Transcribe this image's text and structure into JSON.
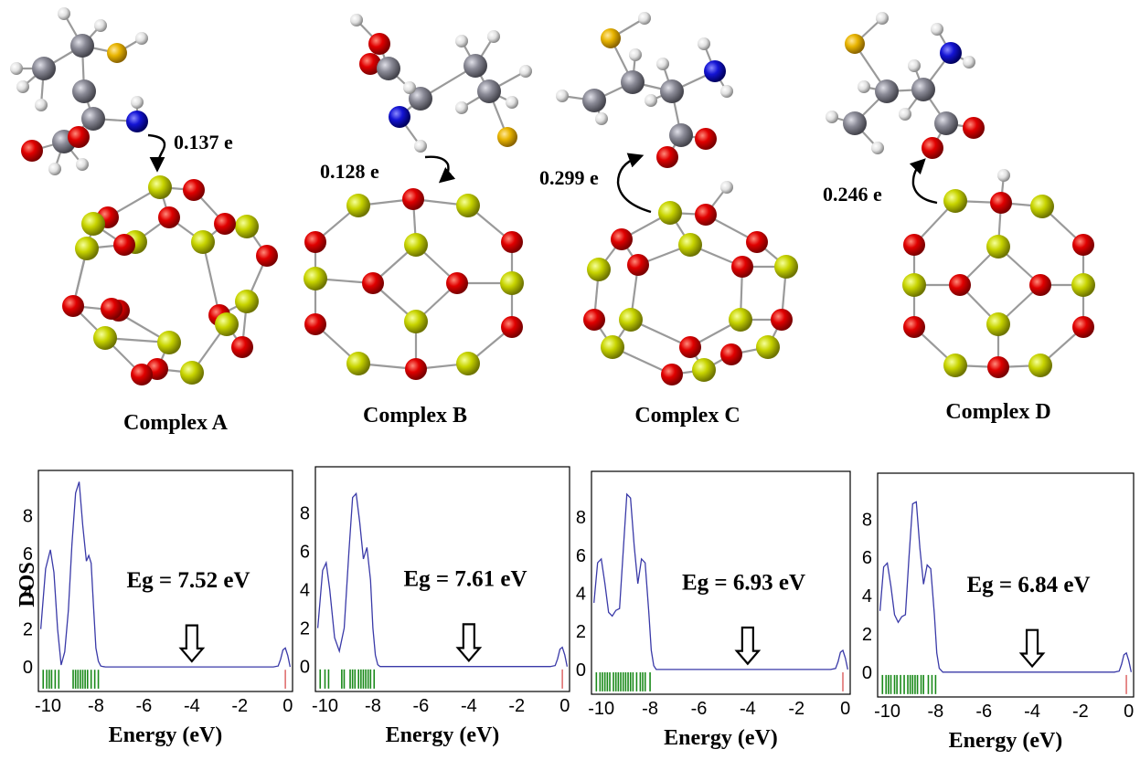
{
  "complexes": [
    {
      "name": "Complex A",
      "charge": "0.137 e",
      "dos": {
        "gap_label": "Eg = 7.52 eV",
        "curve_x": [
          -10.3,
          -10.1,
          -9.9,
          -9.75,
          -9.6,
          -9.45,
          -9.3,
          -9.15,
          -9.0,
          -8.85,
          -8.7,
          -8.55,
          -8.4,
          -8.3,
          -8.2,
          -8.1,
          -8.0,
          -7.9,
          -7.8,
          -7.7,
          -7.6,
          -7.5,
          -7.3,
          -0.6,
          -0.4,
          -0.3,
          -0.2,
          -0.1,
          0.0,
          0.1
        ],
        "curve_y": [
          2.0,
          5.2,
          6.2,
          5.0,
          2.0,
          0.1,
          0.8,
          3.0,
          6.5,
          9.2,
          9.8,
          7.5,
          5.6,
          5.9,
          5.5,
          3.2,
          1.0,
          0.3,
          0.05,
          0.02,
          0.0,
          0.0,
          0.0,
          0.0,
          0.05,
          0.4,
          0.9,
          1.0,
          0.6,
          0.0
        ],
        "green_ticks": [
          -10.2,
          -10.05,
          -9.95,
          -9.85,
          -9.7,
          -9.55,
          -8.95,
          -8.85,
          -8.75,
          -8.65,
          -8.55,
          -8.45,
          -8.35,
          -8.2,
          -8.05,
          -7.9
        ],
        "red_ticks": [
          -0.1
        ]
      }
    },
    {
      "name": "Complex B",
      "charge": "0.128 e",
      "dos": {
        "gap_label": "Eg = 7.61 eV",
        "curve_x": [
          -10.3,
          -10.1,
          -9.95,
          -9.8,
          -9.6,
          -9.4,
          -9.2,
          -9.0,
          -8.85,
          -8.7,
          -8.55,
          -8.4,
          -8.25,
          -8.1,
          -8.0,
          -7.9,
          -7.8,
          -7.7,
          -7.5,
          -7.3,
          -0.6,
          -0.4,
          -0.3,
          -0.2,
          -0.1,
          0.0,
          0.1
        ],
        "curve_y": [
          2.0,
          5.0,
          5.4,
          4.0,
          1.5,
          0.8,
          2.0,
          6.0,
          8.8,
          9.0,
          7.5,
          5.6,
          6.2,
          4.5,
          2.0,
          0.6,
          0.1,
          0.0,
          0.0,
          0.0,
          0.0,
          0.05,
          0.4,
          0.9,
          1.0,
          0.6,
          0.0
        ],
        "green_ticks": [
          -10.2,
          -10.0,
          -9.85,
          -9.3,
          -9.2,
          -8.95,
          -8.85,
          -8.75,
          -8.6,
          -8.5,
          -8.4,
          -8.3,
          -8.2,
          -8.1,
          -7.95
        ],
        "red_ticks": [
          -0.1
        ]
      }
    },
    {
      "name": "Complex C",
      "charge": "0.299 e",
      "dos": {
        "gap_label": "Eg = 6.93 eV",
        "curve_x": [
          -10.3,
          -10.15,
          -10.0,
          -9.85,
          -9.7,
          -9.55,
          -9.4,
          -9.25,
          -9.1,
          -8.95,
          -8.8,
          -8.65,
          -8.5,
          -8.35,
          -8.2,
          -8.05,
          -7.95,
          -7.85,
          -7.75,
          -7.6,
          -7.4,
          -0.6,
          -0.4,
          -0.3,
          -0.2,
          -0.1,
          0.0,
          0.1
        ],
        "curve_y": [
          3.5,
          5.6,
          5.8,
          4.5,
          3.0,
          2.8,
          3.1,
          3.2,
          6.2,
          9.2,
          9.0,
          6.5,
          4.5,
          5.8,
          5.6,
          3.0,
          1.0,
          0.2,
          0.0,
          0.0,
          0.0,
          0.0,
          0.05,
          0.4,
          0.9,
          1.0,
          0.6,
          0.0
        ],
        "green_ticks": [
          -10.2,
          -10.05,
          -9.95,
          -9.85,
          -9.75,
          -9.65,
          -9.5,
          -9.4,
          -9.3,
          -9.2,
          -9.1,
          -9.0,
          -8.9,
          -8.8,
          -8.7,
          -8.55,
          -8.4,
          -8.3,
          -8.2,
          -8.0
        ],
        "red_ticks": [
          -0.1
        ]
      }
    },
    {
      "name": "Complex D",
      "charge": "0.246 e",
      "dos": {
        "gap_label": "Eg = 6.84 eV",
        "curve_x": [
          -10.3,
          -10.15,
          -10.0,
          -9.85,
          -9.7,
          -9.55,
          -9.4,
          -9.25,
          -9.1,
          -8.95,
          -8.8,
          -8.65,
          -8.5,
          -8.35,
          -8.2,
          -8.05,
          -7.95,
          -7.85,
          -7.7,
          -7.5,
          -0.6,
          -0.4,
          -0.3,
          -0.2,
          -0.1,
          0.0,
          0.1
        ],
        "curve_y": [
          3.2,
          5.5,
          5.7,
          4.5,
          3.0,
          2.6,
          2.9,
          3.0,
          6.0,
          8.8,
          8.9,
          6.5,
          4.6,
          5.6,
          5.4,
          3.0,
          1.0,
          0.2,
          0.0,
          0.0,
          0.0,
          0.05,
          0.4,
          0.9,
          1.0,
          0.6,
          0.0
        ],
        "green_ticks": [
          -10.2,
          -10.05,
          -9.95,
          -9.85,
          -9.7,
          -9.6,
          -9.45,
          -9.3,
          -9.15,
          -9.05,
          -8.95,
          -8.85,
          -8.75,
          -8.6,
          -8.5,
          -8.3,
          -8.15,
          -8.0
        ],
        "red_ticks": [
          -0.1
        ]
      }
    }
  ],
  "dos_axes": {
    "ylabel": "DOS",
    "xlabel": "Energy (eV)",
    "xticks": [
      "-10",
      "-8",
      "-6",
      "-4",
      "-2",
      "0"
    ],
    "xtick_values": [
      -10,
      -8,
      -6,
      -4,
      -2,
      0
    ],
    "yticks": [
      "0",
      "2",
      "4",
      "6",
      "8"
    ],
    "ytick_values": [
      0,
      2,
      4,
      6,
      8
    ],
    "xlim": [
      -10.4,
      0.2
    ],
    "ylim": [
      -1.3,
      10.4
    ]
  },
  "colors": {
    "curve": "#3a3aa8",
    "homo_ticks": "#1a8a1a",
    "lumo_ticks": "#e07070",
    "oxygen": "#e00000",
    "silicon": "#c8d400",
    "sulfur": "#e8b400",
    "nitrogen": "#1414d4",
    "carbon": "#8a8a96",
    "hydrogen": "#e8e8e8"
  }
}
